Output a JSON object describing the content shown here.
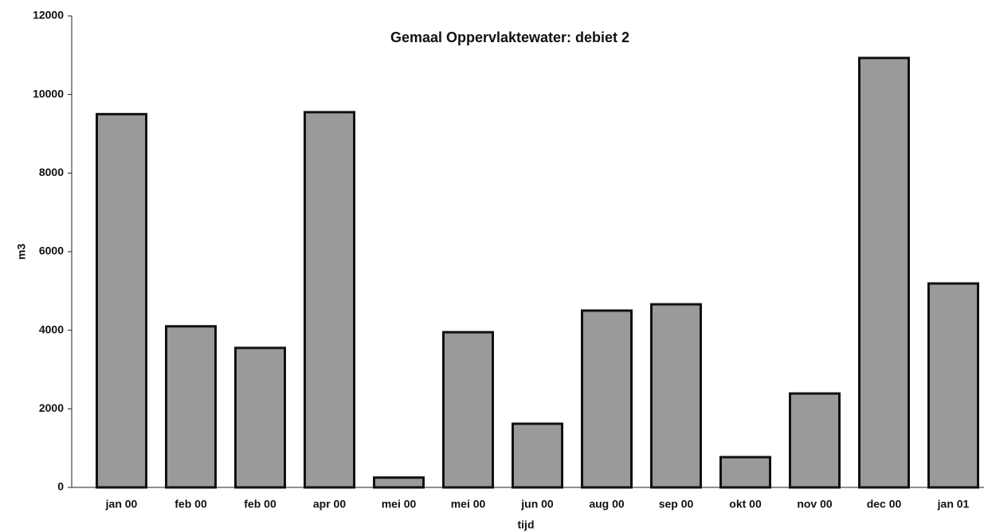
{
  "chart_data": {
    "type": "bar",
    "title": "Gemaal Oppervlaktewater: debiet 2",
    "x_label": "tijd",
    "y_label": "m3",
    "categories": [
      "jan 00",
      "feb 00",
      "feb 00",
      "apr 00",
      "mei 00",
      "mei 00",
      "jun 00",
      "aug 00",
      "sep 00",
      "okt 00",
      "nov 00",
      "dec 00",
      "jan 01"
    ],
    "values": [
      9500,
      4100,
      3550,
      9550,
      250,
      3950,
      1620,
      4500,
      4660,
      770,
      2390,
      10930,
      5190
    ],
    "color": "#9a9a9a",
    "ylim": [
      0,
      12000
    ],
    "yticks": [
      0,
      2000,
      4000,
      6000,
      8000,
      10000,
      12000
    ],
    "grid": false
  }
}
